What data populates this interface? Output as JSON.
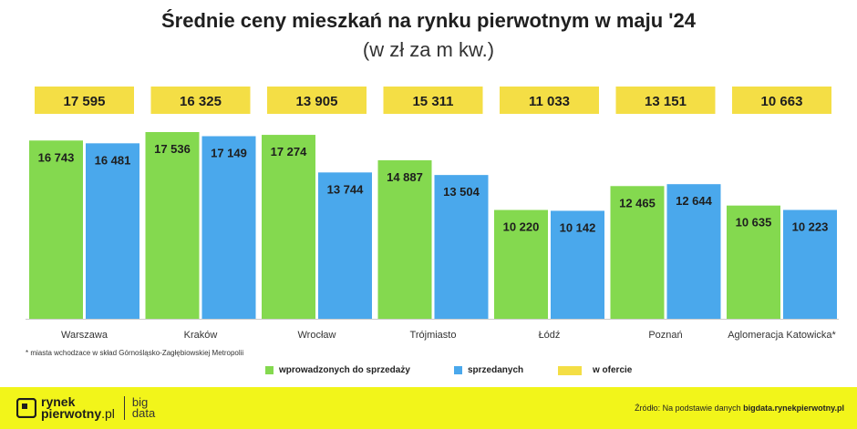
{
  "chart_data": {
    "type": "bar",
    "title": "Średnie ceny mieszkań na rynku pierwotnym w maju '24",
    "subtitle": "(w zł za m kw.)",
    "categories": [
      "Warszawa",
      "Kraków",
      "Wrocław",
      "Trójmiasto",
      "Łódź",
      "Poznań",
      "Aglomeracja Katowicka*"
    ],
    "series": [
      {
        "name": "wprowadzonych do sprzedaży",
        "color": "#84d94f",
        "values": [
          16743,
          17536,
          17274,
          14887,
          10220,
          12465,
          10635
        ],
        "labels": [
          "16 743",
          "17 536",
          "17 274",
          "14 887",
          "10 220",
          "12 465",
          "10 635"
        ]
      },
      {
        "name": "sprzedanych",
        "color": "#4aa8ec",
        "values": [
          16481,
          17149,
          13744,
          13504,
          10142,
          12644,
          10223
        ],
        "labels": [
          "16 481",
          "17 149",
          "13 744",
          "13 504",
          "10 142",
          "12 644",
          "10 223"
        ]
      },
      {
        "name": "w ofercie",
        "color": "#f4de45",
        "values": [
          17595,
          16325,
          13905,
          15311,
          11033,
          13151,
          10663
        ],
        "labels": [
          "17 595",
          "16 325",
          "13 905",
          "15 311",
          "11 033",
          "13 151",
          "10 663"
        ]
      }
    ],
    "ylim": [
      0,
      18000
    ],
    "grid": false,
    "legend": "bottom"
  },
  "footnote": "* miasta wchodzace w skład Górnośląsko-Zagłębiowskiej Metropolii",
  "footer": {
    "logo_line1": "rynek",
    "logo_line2": "pierwotny",
    "logo_suffix": ".pl",
    "logo2_line1": "big",
    "logo2_line2": "data",
    "source_prefix": "Źródło: Na podstawie danych ",
    "source_link": "bigdata.rynekpierwotny.pl",
    "accent_color": "#f2f51a"
  }
}
